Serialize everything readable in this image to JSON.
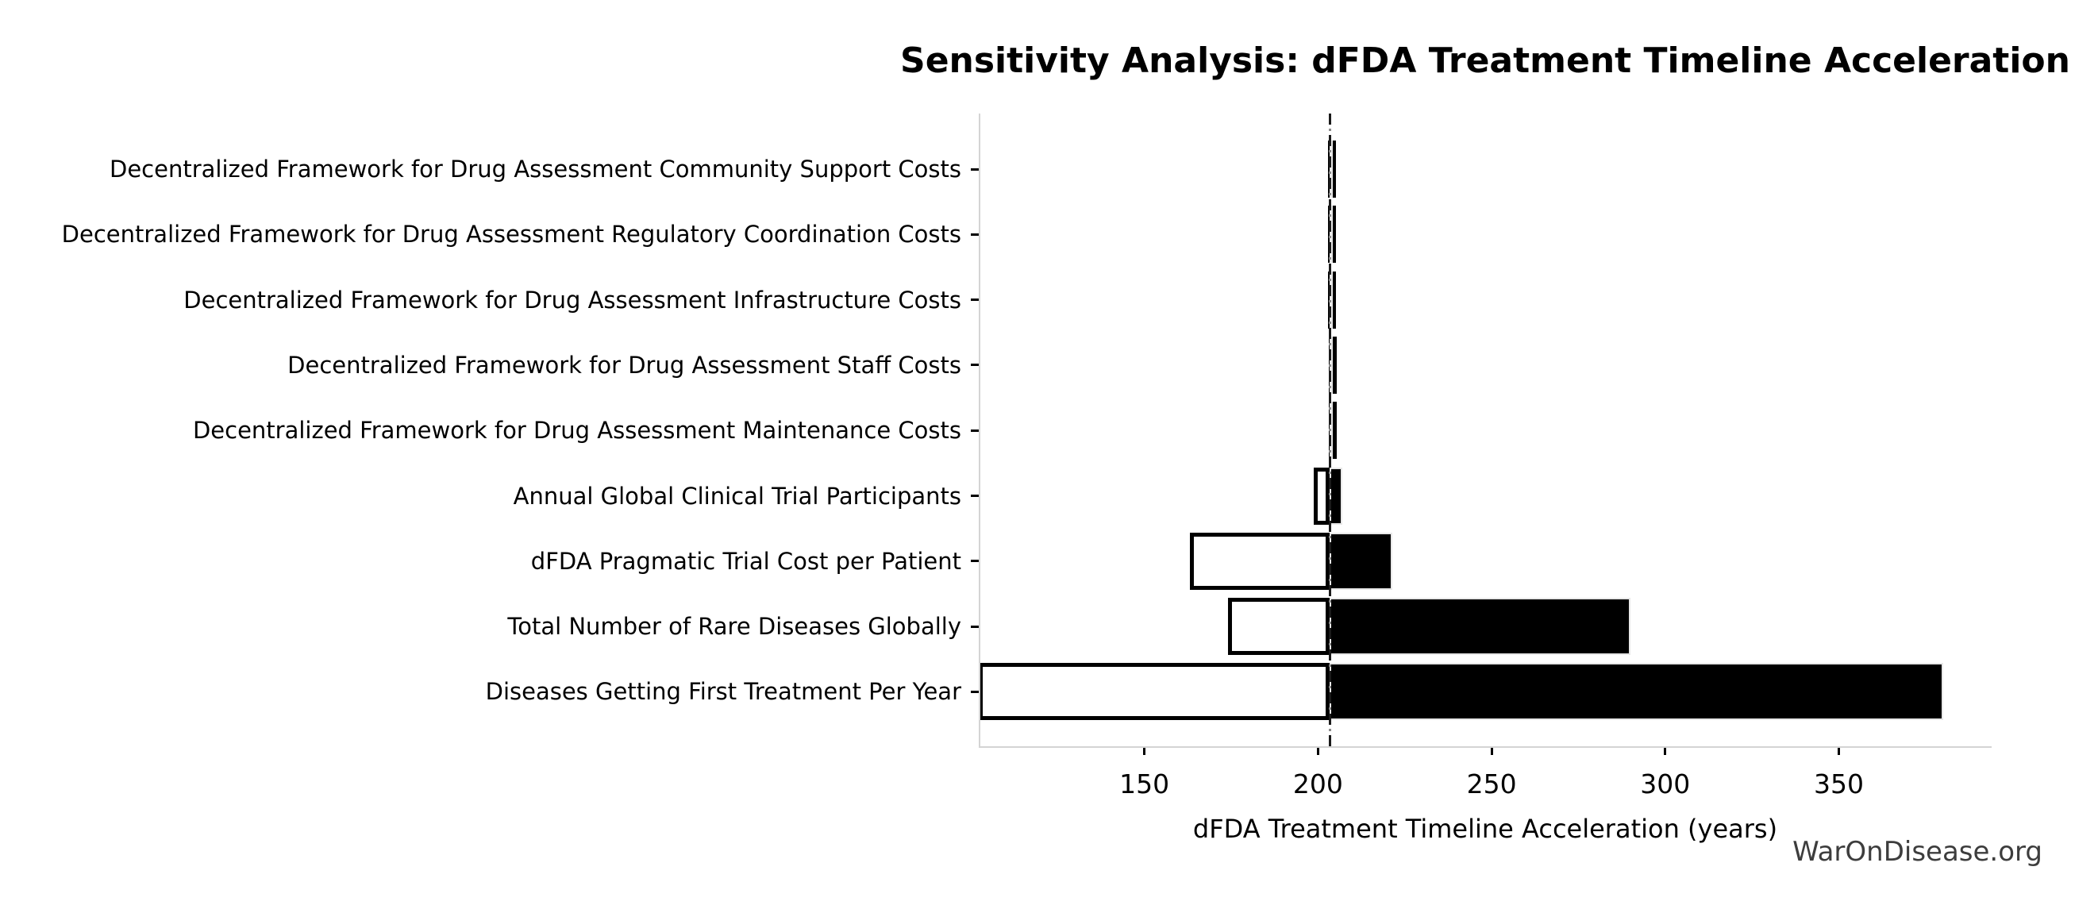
{
  "title": "Sensitivity Analysis: dFDA Treatment Timeline Acceleration",
  "watermark": "WarOnDisease.org",
  "colors": {
    "background": "#ffffff",
    "bar_low_fill": "#ffffff",
    "bar_low_border": "#000000",
    "bar_high_fill": "#000000",
    "bar_high_border": "#e8e8e8",
    "baseline_dash": "#1a1a1a",
    "baseline_dot": "#8a8a8a",
    "spine": "#d4d4d4",
    "tick": "#000000",
    "text": "#000000",
    "watermark_text": "#3d3d3d"
  },
  "chart_data": {
    "type": "bar",
    "subtype": "tornado-sensitivity-horizontal",
    "title": "Sensitivity Analysis: dFDA Treatment Timeline Acceleration",
    "xlabel": "dFDA Treatment Timeline Acceleration (years)",
    "ylabel": "",
    "xlim": [
      102.3,
      394
    ],
    "xticks": [
      150,
      200,
      250,
      300,
      350
    ],
    "baseline": 203.4,
    "grid": false,
    "legend": "none",
    "rows": [
      {
        "label": "Decentralized Framework for Drug Assessment Community Support Costs",
        "low": 203.0,
        "high": 203.8
      },
      {
        "label": "Decentralized Framework for Drug Assessment Regulatory Coordination Costs",
        "low": 203.0,
        "high": 203.8
      },
      {
        "label": "Decentralized Framework for Drug Assessment Infrastructure Costs",
        "low": 203.0,
        "high": 203.8
      },
      {
        "label": "Decentralized Framework for Drug Assessment Staff Costs",
        "low": 203.1,
        "high": 203.7
      },
      {
        "label": "Decentralized Framework for Drug Assessment Maintenance Costs",
        "low": 203.1,
        "high": 203.7
      },
      {
        "label": "Annual Global Clinical Trial Participants",
        "low": 198.8,
        "high": 207.0
      },
      {
        "label": "dFDA Pragmatic Trial Cost per Patient",
        "low": 163.0,
        "high": 221.5
      },
      {
        "label": "Total Number of Rare Diseases Globally",
        "low": 174.0,
        "high": 290.0
      },
      {
        "label": "Diseases Getting First Treatment Per Year",
        "low": 102.0,
        "high": 380.0
      }
    ],
    "bar_meaning": {
      "white_bar": "low-input scenario (extends left of baseline)",
      "black_bar": "high-input scenario (extends right of baseline)"
    }
  }
}
